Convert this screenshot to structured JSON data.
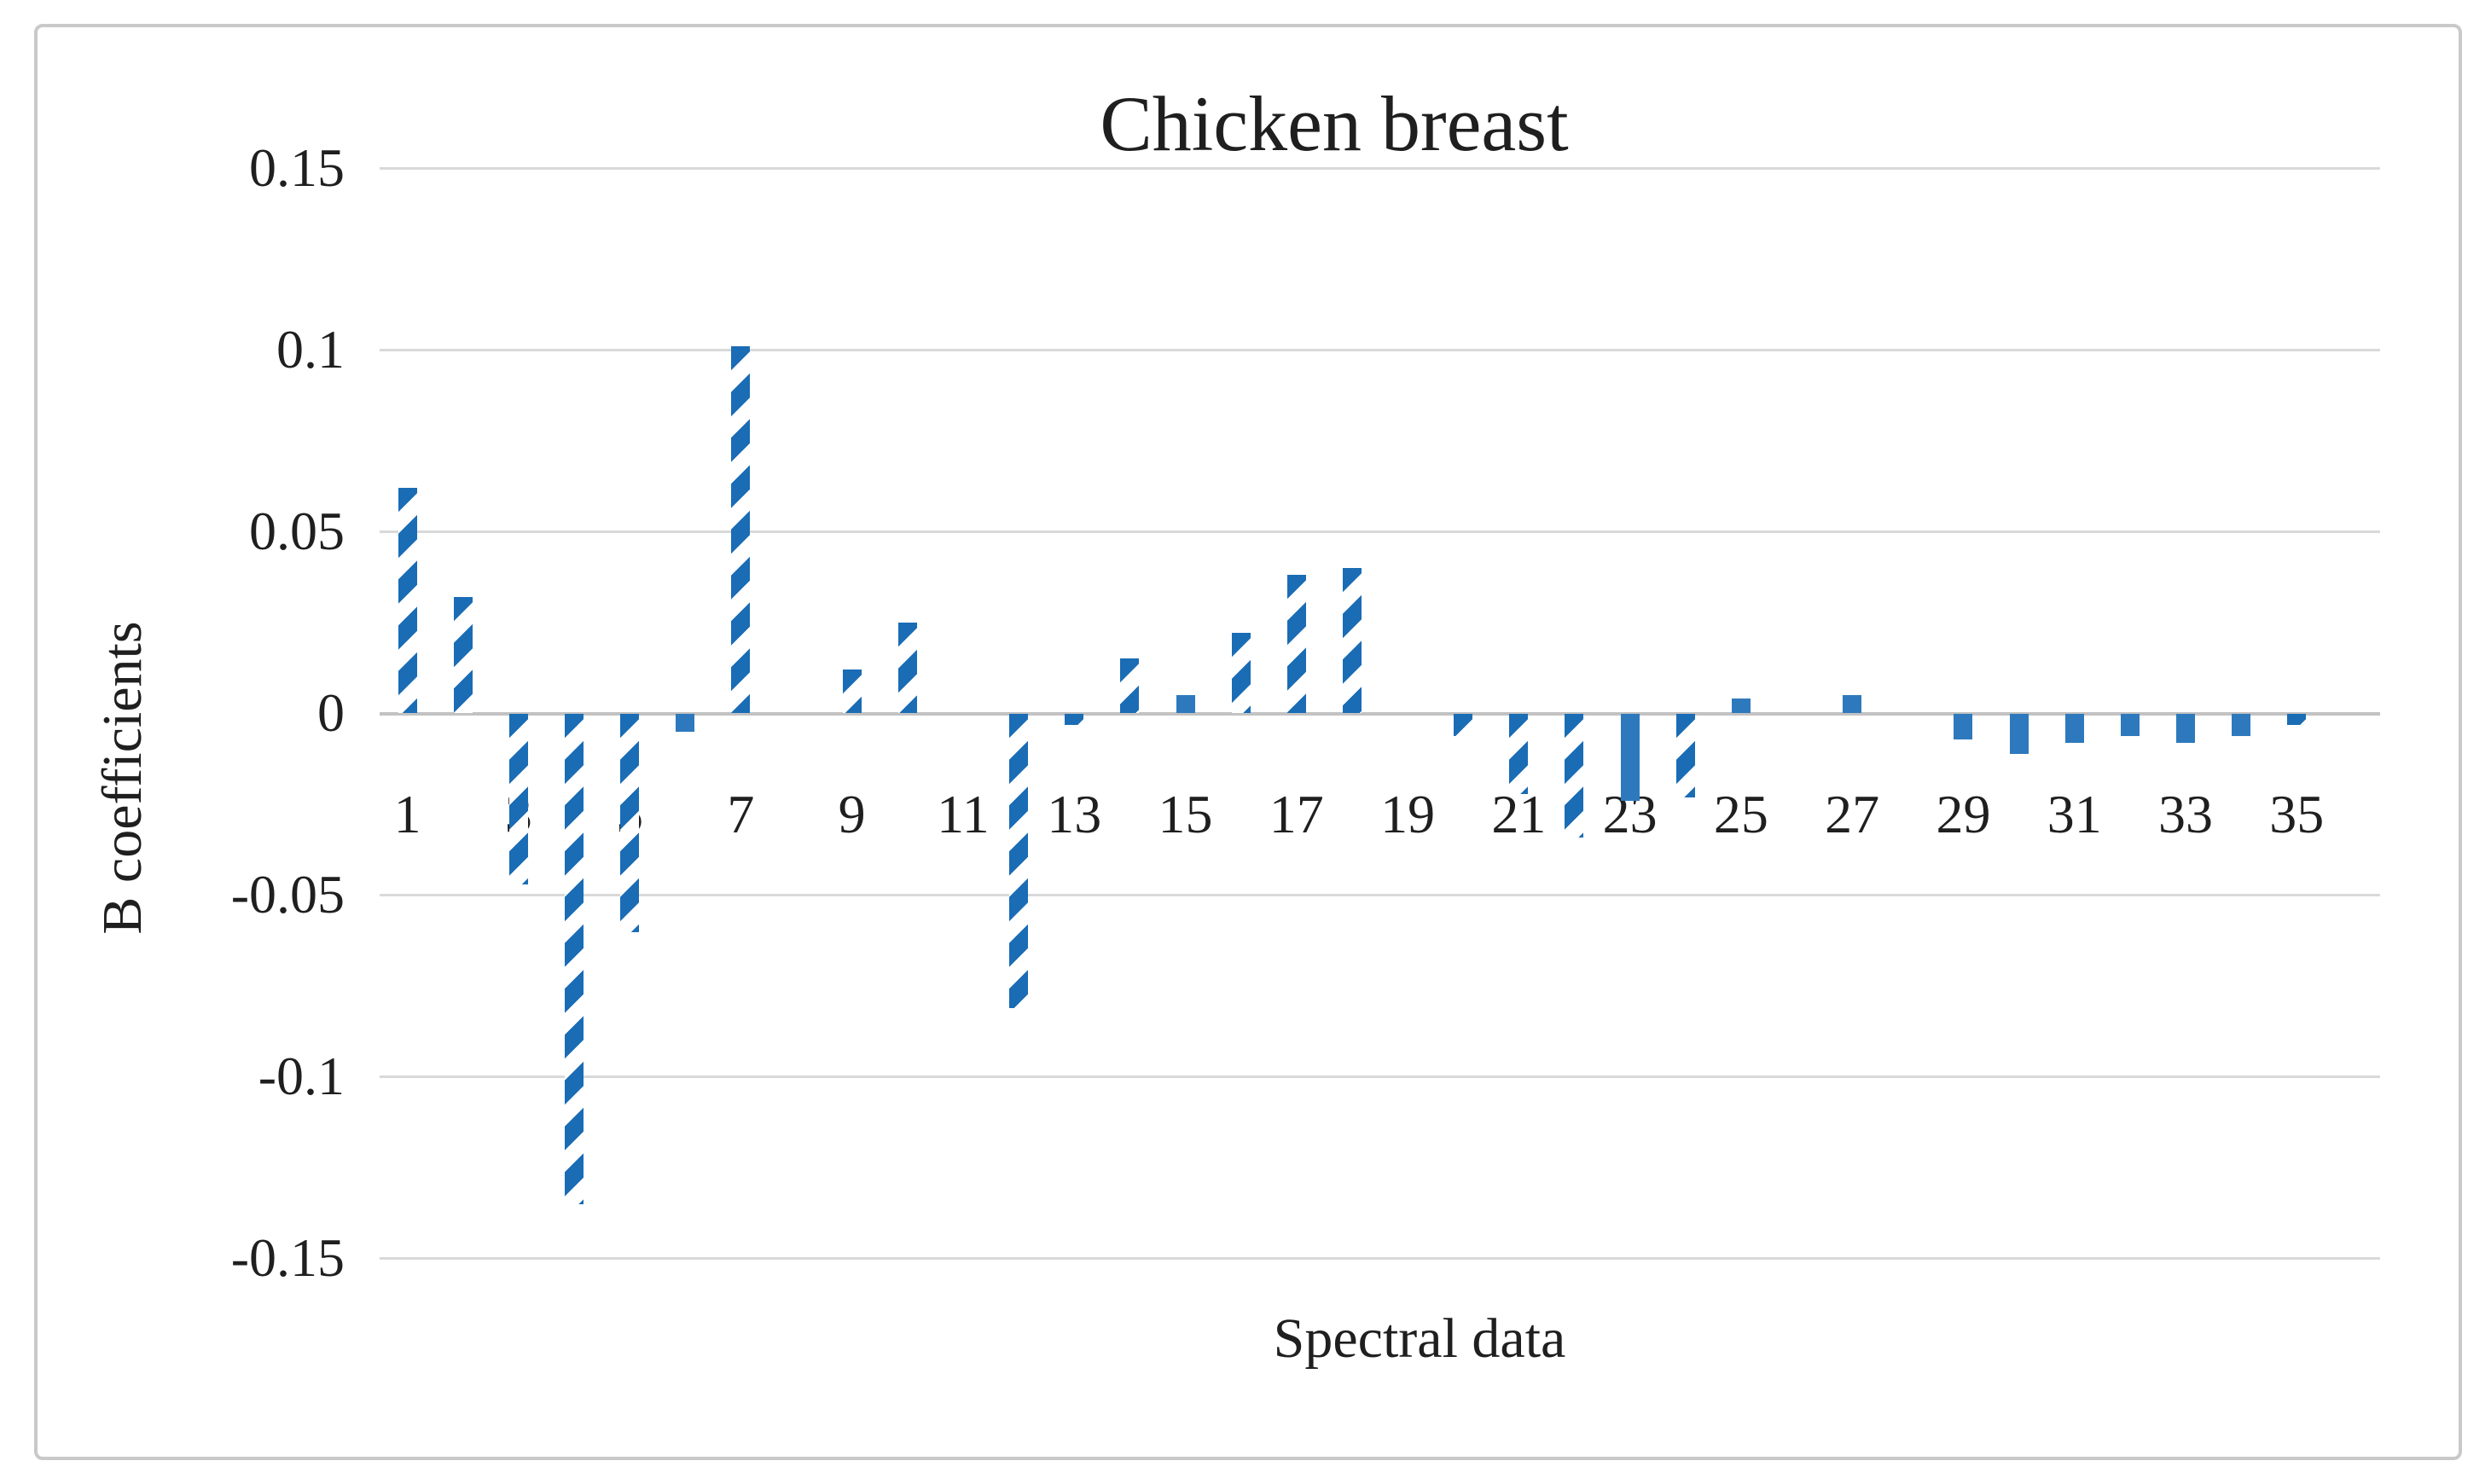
{
  "title": "Chicken breast",
  "y_axis": {
    "title": "B coefficients",
    "tick_labels": [
      "0.15",
      "0.1",
      "0.05",
      "0",
      "-0.05",
      "-0.1",
      "-0.15"
    ]
  },
  "x_axis": {
    "title": "Spectral data",
    "tick_labels": [
      "1",
      "3",
      "5",
      "7",
      "9",
      "11",
      "13",
      "15",
      "17",
      "19",
      "21",
      "23",
      "25",
      "27",
      "29",
      "31",
      "33",
      "35"
    ]
  },
  "chart_data": {
    "type": "bar",
    "title": "Chicken breast",
    "xlabel": "Spectral data",
    "ylabel": "B coefficients",
    "ylim": [
      -0.15,
      0.15
    ],
    "ytick_step": 0.05,
    "grid": true,
    "legend": false,
    "categories": [
      1,
      2,
      3,
      4,
      5,
      6,
      7,
      8,
      9,
      10,
      11,
      12,
      13,
      14,
      15,
      16,
      17,
      18,
      19,
      20,
      21,
      22,
      23,
      24,
      25,
      26,
      27,
      28,
      29,
      30,
      31,
      32,
      33,
      34,
      35
    ],
    "values": [
      0.062,
      0.032,
      -0.047,
      -0.135,
      -0.06,
      -0.005,
      0.101,
      0,
      0.012,
      0.025,
      0,
      -0.081,
      -0.003,
      0.015,
      0.005,
      0.022,
      0.038,
      0.04,
      0,
      -0.006,
      -0.022,
      -0.034,
      -0.024,
      -0.023,
      0.004,
      0,
      0.005,
      0,
      -0.007,
      -0.011,
      -0.008,
      -0.006,
      -0.008,
      -0.006,
      -0.003
    ],
    "bar_styles": [
      "hatched",
      "hatched",
      "hatched",
      "hatched",
      "hatched",
      "solid",
      "hatched",
      "none",
      "hatched",
      "hatched",
      "none",
      "hatched",
      "hatched",
      "hatched",
      "solid",
      "hatched",
      "hatched",
      "hatched",
      "none",
      "hatched",
      "hatched",
      "hatched",
      "solid",
      "hatched",
      "solid",
      "none",
      "solid",
      "none",
      "solid",
      "solid",
      "solid",
      "solid",
      "solid",
      "solid",
      "hatched"
    ],
    "colors": {
      "bar_solid": "#2e79bd",
      "bar_hatch": "#1a6cb5",
      "gridline": "#d9d9d9",
      "axis_line": "#c2c2c2",
      "text": "#1f1f1f",
      "background": "#ffffff",
      "frame_border": "#c9c9c9"
    }
  }
}
